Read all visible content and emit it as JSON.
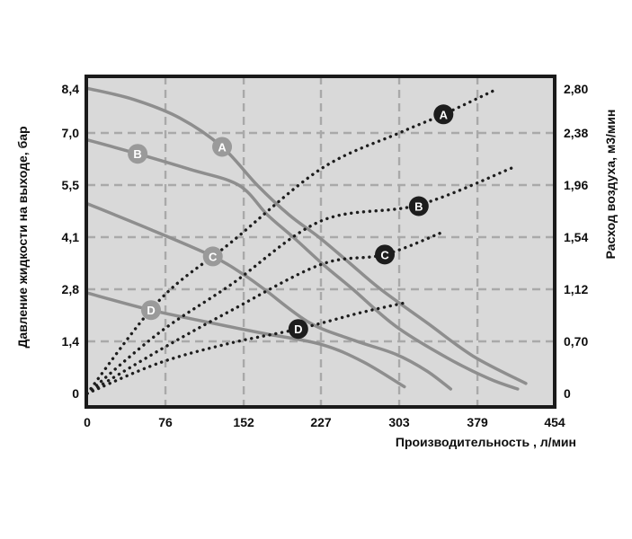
{
  "chart_data": {
    "type": "line",
    "title": "",
    "xlabel": "Производительность , л/мин",
    "ylabel_left": "Давление жидкости на выходе, бар",
    "ylabel_right": "Расход воздуха, м3/мин",
    "xlim": [
      0,
      454
    ],
    "ylim_left": [
      0,
      8.4
    ],
    "ylim_right": [
      0,
      2.8
    ],
    "grid": "dashed",
    "x_ticks": {
      "values": [
        0,
        76,
        152,
        227,
        303,
        379,
        454
      ],
      "labels": [
        "0",
        "76",
        "152",
        "227",
        "303",
        "379",
        "454"
      ]
    },
    "y_left_ticks": {
      "values": [
        0,
        1.4,
        2.8,
        4.1,
        5.5,
        7.0,
        8.4
      ],
      "labels": [
        "0",
        "1,4",
        "2,8",
        "4,1",
        "5,5",
        "7,0",
        "8,4"
      ]
    },
    "y_right_ticks": {
      "values": [
        0,
        0.7,
        1.12,
        1.54,
        1.96,
        2.38,
        2.8
      ],
      "labels": [
        "0",
        "0,70",
        "1,12",
        "1,54",
        "1,96",
        "2,38",
        "2,80"
      ]
    },
    "pressure_curves": [
      {
        "name": "A",
        "style": "solid",
        "label_at": [
          131,
          6.6
        ],
        "points": [
          [
            0,
            8.2
          ],
          [
            45,
            7.9
          ],
          [
            90,
            7.4
          ],
          [
            131,
            6.6
          ],
          [
            165,
            5.5
          ],
          [
            196,
            4.7
          ],
          [
            225,
            4.1
          ],
          [
            255,
            3.45
          ],
          [
            285,
            2.8
          ],
          [
            330,
            1.9
          ],
          [
            375,
            1.0
          ],
          [
            426,
            0.27
          ]
        ]
      },
      {
        "name": "B",
        "style": "solid",
        "label_at": [
          49,
          6.4
        ],
        "points": [
          [
            0,
            6.8
          ],
          [
            49,
            6.4
          ],
          [
            100,
            5.95
          ],
          [
            147,
            5.5
          ],
          [
            175,
            4.7
          ],
          [
            200,
            4.1
          ],
          [
            230,
            3.4
          ],
          [
            258,
            2.8
          ],
          [
            300,
            1.8
          ],
          [
            350,
            0.95
          ],
          [
            390,
            0.4
          ],
          [
            418,
            0.12
          ]
        ]
      },
      {
        "name": "C",
        "style": "solid",
        "label_at": [
          122,
          3.62
        ],
        "points": [
          [
            0,
            5.0
          ],
          [
            62,
            4.3
          ],
          [
            122,
            3.62
          ],
          [
            150,
            3.2
          ],
          [
            172,
            2.8
          ],
          [
            216,
            1.9
          ],
          [
            260,
            1.42
          ],
          [
            300,
            1.05
          ],
          [
            330,
            0.6
          ],
          [
            353,
            0.12
          ]
        ]
      },
      {
        "name": "D",
        "style": "solid",
        "label_at": [
          62,
          2.24
        ],
        "points": [
          [
            0,
            2.7
          ],
          [
            62,
            2.24
          ],
          [
            120,
            1.9
          ],
          [
            170,
            1.62
          ],
          [
            227,
            1.32
          ],
          [
            268,
            0.85
          ],
          [
            308,
            0.18
          ]
        ]
      }
    ],
    "air_curves": [
      {
        "name": "A",
        "style": "dotted",
        "label_at": [
          346,
          2.53
        ],
        "points": [
          [
            0,
            0
          ],
          [
            70,
            1.03
          ],
          [
            140,
            1.5
          ],
          [
            227,
            2.09
          ],
          [
            303,
            2.38
          ],
          [
            346,
            2.53
          ],
          [
            397,
            2.73
          ]
        ]
      },
      {
        "name": "B",
        "style": "dotted",
        "label_at": [
          322,
          1.79
        ],
        "points": [
          [
            0,
            0
          ],
          [
            70,
            0.77
          ],
          [
            140,
            1.16
          ],
          [
            227,
            1.67
          ],
          [
            322,
            1.8
          ],
          [
            413,
            2.1
          ]
        ]
      },
      {
        "name": "C",
        "style": "dotted",
        "label_at": [
          289,
          1.4
        ],
        "points": [
          [
            0,
            0
          ],
          [
            70,
            0.58
          ],
          [
            140,
            0.95
          ],
          [
            227,
            1.32
          ],
          [
            289,
            1.4
          ],
          [
            345,
            1.58
          ]
        ]
      },
      {
        "name": "D",
        "style": "dotted",
        "label_at": [
          205,
          0.8
        ],
        "points": [
          [
            0,
            0
          ],
          [
            70,
            0.41
          ],
          [
            140,
            0.68
          ],
          [
            205,
            0.8
          ],
          [
            265,
            0.93
          ],
          [
            308,
            1.01
          ]
        ]
      }
    ],
    "colors": {
      "page_bg": "#ffffff",
      "plot_bg": "#d9d9d9",
      "border": "#1a1a1a",
      "grid": "#a9a9a9",
      "pressure_curve": "#8e8e8e",
      "air_curve": "#1d1d1d",
      "pressure_label_bg": "#9a9a9a",
      "air_label_bg": "#1d1d1d",
      "label_text": "#ffffff",
      "axis_text": "#0e0e0e"
    }
  }
}
